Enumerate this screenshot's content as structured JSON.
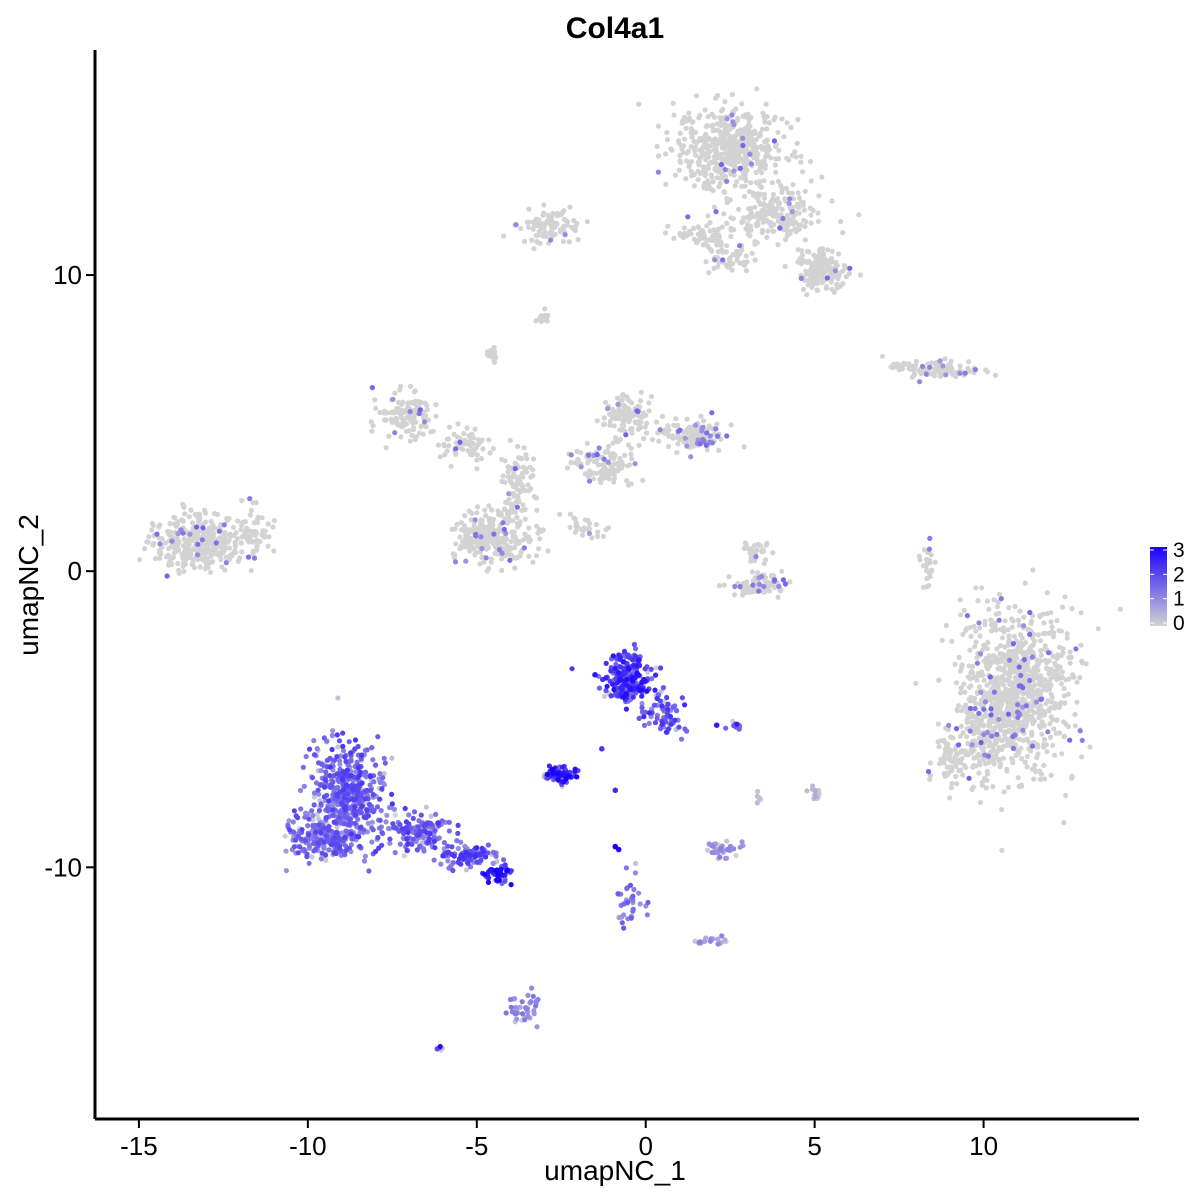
{
  "chart_data": {
    "type": "scatter",
    "title": "Col4a1",
    "xlabel": "umapNC_1",
    "ylabel": "umapNC_2",
    "xlim": [
      -16.3,
      14.6
    ],
    "ylim": [
      -18.5,
      17.6
    ],
    "x_ticks": [
      -15,
      -10,
      -5,
      0,
      5,
      10
    ],
    "x_tick_labels": [
      "-15",
      "-10",
      "-5",
      "0",
      "5",
      "10"
    ],
    "y_ticks": [
      -10,
      0,
      10
    ],
    "y_tick_labels": [
      "-10",
      "0",
      "10"
    ],
    "grid": false,
    "legend_position": "right",
    "color_scale": {
      "low_color": "#d3d3d3",
      "high_color": "#1a00ff",
      "min": 0,
      "max": 3,
      "breaks": [
        3,
        2,
        1,
        0
      ]
    },
    "clusters": [
      {
        "x": 11.0,
        "y": -4.0,
        "rx": 1.6,
        "ry": 2.7,
        "count": 900,
        "expr": 0.02
      },
      {
        "x": 10.0,
        "y": -5.5,
        "rx": 1.0,
        "ry": 1.4,
        "count": 150,
        "expr": 0.02
      },
      {
        "x": 9.1,
        "y": -6.4,
        "rx": 0.6,
        "ry": 0.8,
        "count": 60,
        "expr": 0.02
      },
      {
        "x": 2.5,
        "y": 14.3,
        "rx": 1.6,
        "ry": 1.4,
        "count": 500,
        "expr": 0.01
      },
      {
        "x": 3.8,
        "y": 12.0,
        "rx": 1.4,
        "ry": 0.9,
        "count": 200,
        "expr": 0.01
      },
      {
        "x": 5.2,
        "y": 10.2,
        "rx": 0.7,
        "ry": 0.7,
        "count": 160,
        "expr": 0.01
      },
      {
        "x": 2.5,
        "y": 10.6,
        "rx": 0.8,
        "ry": 0.6,
        "count": 60,
        "expr": 0.01
      },
      {
        "x": 1.5,
        "y": 11.4,
        "rx": 0.9,
        "ry": 0.3,
        "count": 50,
        "expr": 0.01
      },
      {
        "x": -2.8,
        "y": 11.6,
        "rx": 0.9,
        "ry": 0.6,
        "count": 90,
        "expr": 0.01
      },
      {
        "x": -13.2,
        "y": 0.9,
        "rx": 1.3,
        "ry": 0.9,
        "count": 350,
        "expr": 0.01
      },
      {
        "x": -11.6,
        "y": 1.3,
        "rx": 0.6,
        "ry": 0.9,
        "count": 50,
        "expr": 0.01
      },
      {
        "x": -7.0,
        "y": 5.2,
        "rx": 0.8,
        "ry": 0.8,
        "count": 120,
        "expr": 0.01
      },
      {
        "x": -5.4,
        "y": 4.3,
        "rx": 0.8,
        "ry": 0.6,
        "count": 60,
        "expr": 0.02
      },
      {
        "x": -4.5,
        "y": 1.1,
        "rx": 1.1,
        "ry": 1.0,
        "count": 280,
        "expr": 0.02
      },
      {
        "x": -3.8,
        "y": 3.0,
        "rx": 0.5,
        "ry": 1.2,
        "count": 90,
        "expr": 0.02
      },
      {
        "x": -1.3,
        "y": 3.6,
        "rx": 1.1,
        "ry": 0.6,
        "count": 110,
        "expr": 0.02
      },
      {
        "x": -0.6,
        "y": 5.2,
        "rx": 0.7,
        "ry": 0.8,
        "count": 110,
        "expr": 0.03
      },
      {
        "x": 1.4,
        "y": 4.6,
        "rx": 1.1,
        "ry": 0.6,
        "count": 130,
        "expr": 0.04
      },
      {
        "x": -1.7,
        "y": 1.5,
        "rx": 0.5,
        "ry": 0.4,
        "count": 30,
        "expr": 0.02
      },
      {
        "x": -4.5,
        "y": 7.3,
        "rx": 0.2,
        "ry": 0.3,
        "count": 15,
        "expr": 0.01
      },
      {
        "x": -3.0,
        "y": 8.6,
        "rx": 0.3,
        "ry": 0.2,
        "count": 15,
        "expr": 0.01
      },
      {
        "x": 3.4,
        "y": -0.5,
        "rx": 0.9,
        "ry": 0.4,
        "count": 100,
        "expr": 0.03
      },
      {
        "x": 3.3,
        "y": 0.7,
        "rx": 0.4,
        "ry": 0.4,
        "count": 30,
        "expr": 0.02
      },
      {
        "x": 8.9,
        "y": 6.8,
        "rx": 1.0,
        "ry": 0.3,
        "count": 80,
        "expr": 0.02
      },
      {
        "x": 7.6,
        "y": 6.9,
        "rx": 0.6,
        "ry": 0.2,
        "count": 30,
        "expr": 0.01
      },
      {
        "x": 8.4,
        "y": 0.2,
        "rx": 0.2,
        "ry": 0.8,
        "count": 30,
        "expr": 0.03
      },
      {
        "x": -8.8,
        "y": -7.5,
        "rx": 1.1,
        "ry": 1.7,
        "count": 450,
        "expr": 0.55
      },
      {
        "x": -9.5,
        "y": -9.0,
        "rx": 1.0,
        "ry": 0.8,
        "count": 220,
        "expr": 0.5
      },
      {
        "x": -6.8,
        "y": -8.8,
        "rx": 1.0,
        "ry": 0.6,
        "count": 140,
        "expr": 0.55
      },
      {
        "x": -5.3,
        "y": -9.6,
        "rx": 0.9,
        "ry": 0.4,
        "count": 90,
        "expr": 0.6
      },
      {
        "x": -4.4,
        "y": -10.2,
        "rx": 0.5,
        "ry": 0.3,
        "count": 50,
        "expr": 0.8
      },
      {
        "x": -0.5,
        "y": -3.6,
        "rx": 0.7,
        "ry": 0.8,
        "count": 220,
        "expr": 0.7
      },
      {
        "x": 0.5,
        "y": -4.8,
        "rx": 0.6,
        "ry": 0.6,
        "count": 70,
        "expr": 0.6
      },
      {
        "x": -2.5,
        "y": -6.9,
        "rx": 0.5,
        "ry": 0.3,
        "count": 60,
        "expr": 0.8
      },
      {
        "x": 2.7,
        "y": -5.2,
        "rx": 0.3,
        "ry": 0.15,
        "count": 12,
        "expr": 0.75
      },
      {
        "x": 2.3,
        "y": -9.4,
        "rx": 0.5,
        "ry": 0.3,
        "count": 40,
        "expr": 0.3
      },
      {
        "x": 2.0,
        "y": -12.5,
        "rx": 0.7,
        "ry": 0.2,
        "count": 20,
        "expr": 0.3
      },
      {
        "x": -3.6,
        "y": -14.8,
        "rx": 0.4,
        "ry": 0.6,
        "count": 40,
        "expr": 0.35
      },
      {
        "x": -0.5,
        "y": -11.0,
        "rx": 0.4,
        "ry": 0.9,
        "count": 35,
        "expr": 0.45
      },
      {
        "x": 5.0,
        "y": -7.5,
        "rx": 0.2,
        "ry": 0.3,
        "count": 12,
        "expr": 0.15
      },
      {
        "x": 3.3,
        "y": -7.7,
        "rx": 0.1,
        "ry": 0.2,
        "count": 6,
        "expr": 0.1
      },
      {
        "x": -6.1,
        "y": -16.1,
        "rx": 0.1,
        "ry": 0.1,
        "count": 5,
        "expr": 0.8
      }
    ],
    "highlight_points": [
      {
        "x": -0.9,
        "y": -9.3,
        "value": 3.0
      },
      {
        "x": -0.8,
        "y": -9.4,
        "value": 2.9
      },
      {
        "x": -0.5,
        "y": -3.3,
        "value": 2.8
      },
      {
        "x": -4.3,
        "y": -10.2,
        "value": 2.9
      },
      {
        "x": -4.6,
        "y": -10.1,
        "value": 2.7
      },
      {
        "x": -0.2,
        "y": -3.0,
        "value": 2.6
      },
      {
        "x": -1.3,
        "y": -6.0,
        "value": 2.2
      },
      {
        "x": -1.5,
        "y": -3.5,
        "value": 2.7
      },
      {
        "x": 2.1,
        "y": -5.2,
        "value": 2.6
      },
      {
        "x": -0.9,
        "y": -7.4,
        "value": 2.4
      }
    ]
  }
}
